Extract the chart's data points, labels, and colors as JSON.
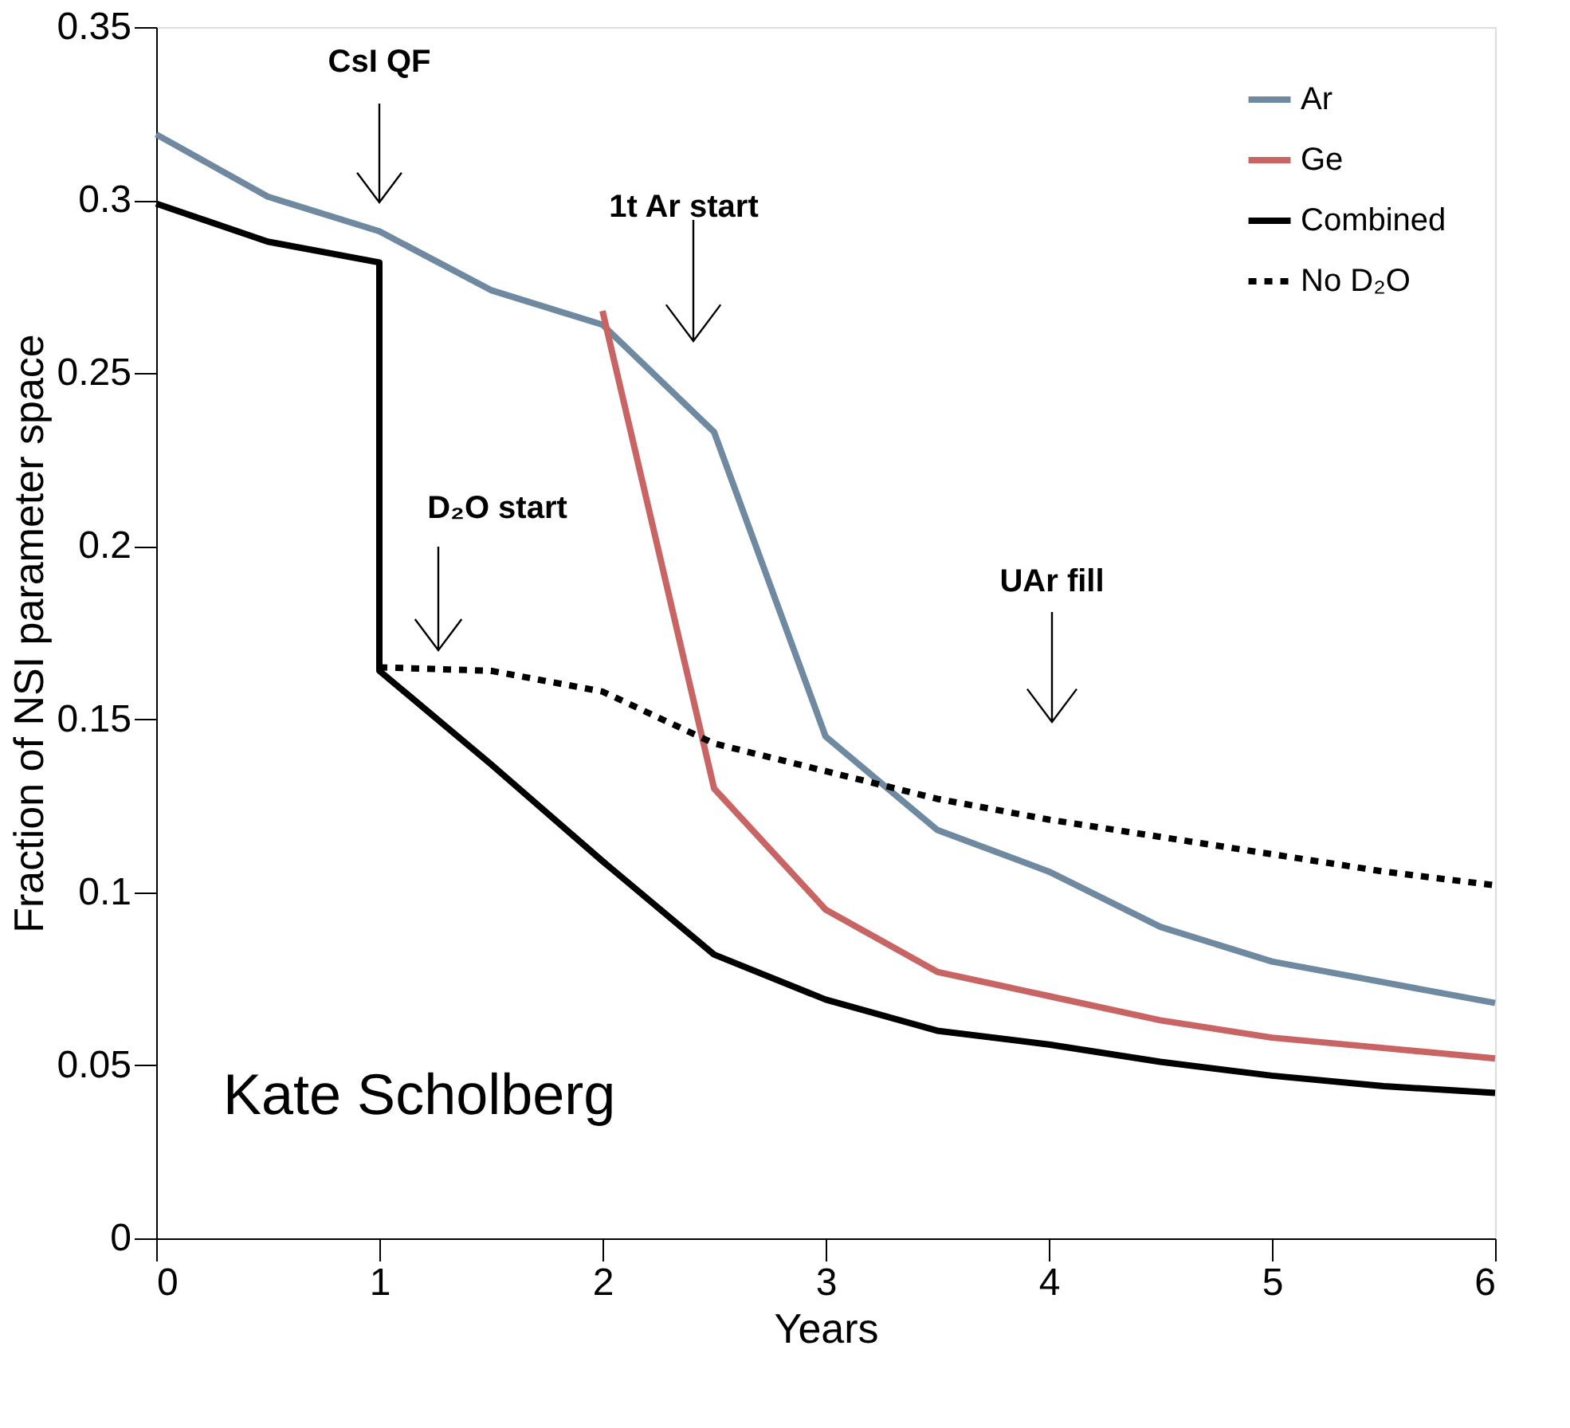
{
  "chart_data": {
    "type": "line",
    "xlabel": "Years",
    "ylabel": "Fraction of NSI parameter space",
    "xlim": [
      0,
      6
    ],
    "xticks": [
      0,
      1,
      2,
      3,
      4,
      5,
      6
    ],
    "ylim": [
      0,
      0.35
    ],
    "yticks": [
      0,
      0.05,
      0.1,
      0.15,
      0.2,
      0.25,
      0.3,
      0.35
    ],
    "grid": false,
    "legend": "top right",
    "marker": "none",
    "series": [
      {
        "name": "Ar",
        "color": "#6f8aa0",
        "line_style": "solid",
        "x": [
          0,
          0.5,
          1,
          1.5,
          2,
          2.5,
          3,
          3.5,
          4,
          4.5,
          5,
          5.5,
          6
        ],
        "values": [
          0.319,
          0.301,
          0.291,
          0.274,
          0.264,
          0.233,
          0.145,
          0.118,
          0.106,
          0.09,
          0.08,
          0.074,
          0.068
        ]
      },
      {
        "name": "Ge",
        "color": "#c96464",
        "line_style": "solid",
        "x": [
          2,
          2.5,
          3,
          3.5,
          4,
          4.5,
          5,
          5.5,
          6
        ],
        "values": [
          0.268,
          0.13,
          0.095,
          0.077,
          0.07,
          0.063,
          0.058,
          0.055,
          0.052
        ]
      },
      {
        "name": "Combined",
        "color": "#000000",
        "line_style": "solid",
        "x": [
          0,
          0.5,
          1,
          1,
          1.5,
          2,
          2.5,
          3,
          3.5,
          4,
          4.5,
          5,
          5.5,
          6
        ],
        "values": [
          0.299,
          0.288,
          0.282,
          0.164,
          0.137,
          0.109,
          0.082,
          0.069,
          0.06,
          0.056,
          0.051,
          0.047,
          0.044,
          0.042
        ]
      },
      {
        "name": "No D₂O",
        "color": "#000000",
        "line_style": "dotted",
        "x": [
          1,
          1.5,
          2,
          2.5,
          3,
          3.5,
          4,
          4.5,
          5,
          5.5,
          6
        ],
        "values": [
          0.165,
          0.164,
          0.158,
          0.143,
          0.135,
          0.127,
          0.121,
          0.116,
          0.111,
          0.106,
          0.102
        ]
      }
    ],
    "annotations": [
      "CsI QF",
      "1t Ar start",
      "D₂O start",
      "UAr fill",
      "Kate Scholberg"
    ]
  }
}
